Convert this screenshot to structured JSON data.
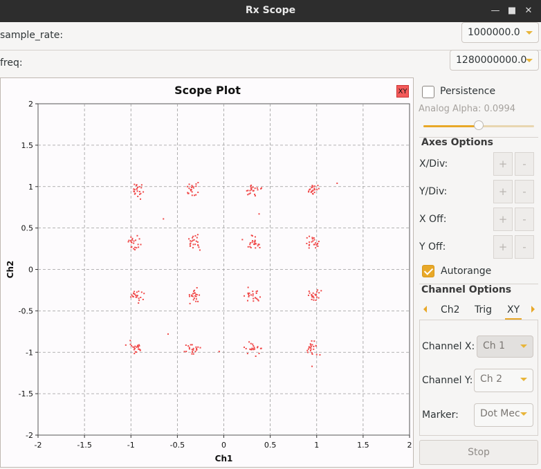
{
  "window": {
    "title": "Rx Scope"
  },
  "params": {
    "sample_rate": {
      "label": "sample_rate:",
      "value": "1000000.0"
    },
    "freq": {
      "label": "freq:",
      "value": "1280000000.0"
    }
  },
  "plot": {
    "xy_button": "XY",
    "marker_color": "#f04848"
  },
  "chart_data": {
    "type": "scatter",
    "title": "Scope Plot",
    "xlabel": "Ch1",
    "ylabel": "Ch2",
    "xlim": [
      -2,
      2
    ],
    "ylim": [
      -2,
      2
    ],
    "x_ticks": [
      "-2",
      "-1.5",
      "-1",
      "-0.5",
      "0",
      "0.5",
      "1",
      "1.5",
      "2"
    ],
    "y_ticks": [
      "-2",
      "-1.5",
      "-1",
      "-0.5",
      "0",
      "0.5",
      "1",
      "1.5",
      "2"
    ],
    "grid": true,
    "clusters": {
      "x": [
        -0.95,
        -0.32,
        0.32,
        0.95
      ],
      "y": [
        -0.95,
        -0.32,
        0.32,
        0.95
      ],
      "spread": 0.04,
      "points_per_cluster": 22
    },
    "outliers": [
      [
        1.22,
        1.04
      ],
      [
        -0.65,
        0.61
      ],
      [
        0.38,
        0.67
      ],
      [
        -0.6,
        -0.78
      ],
      [
        0.22,
        -0.32
      ],
      [
        -0.05,
        -0.99
      ],
      [
        0.95,
        -1.17
      ],
      [
        0.2,
        0.36
      ],
      [
        -0.28,
        0.42
      ]
    ]
  },
  "controls": {
    "persistence": {
      "label": "Persistence",
      "checked": false
    },
    "analog_alpha": {
      "label": "Analog Alpha: 0.0994",
      "value": 0.0994,
      "slider_fraction": 0.5
    },
    "axes_options": {
      "title": "Axes Options",
      "rows": [
        {
          "label": "X/Div:",
          "plus": "+",
          "minus": "-"
        },
        {
          "label": "Y/Div:",
          "plus": "+",
          "minus": "-"
        },
        {
          "label": "X Off:",
          "plus": "+",
          "minus": "-"
        },
        {
          "label": "Y Off:",
          "plus": "+",
          "minus": "-"
        }
      ]
    },
    "autorange": {
      "label": "Autorange",
      "checked": true
    },
    "channel_options": {
      "title": "Channel Options",
      "tabs": [
        "Ch2",
        "Trig",
        "XY"
      ],
      "active_tab": "XY",
      "channel_x": {
        "label": "Channel X:",
        "value": "Ch 1"
      },
      "channel_y": {
        "label": "Channel Y:",
        "value": "Ch 2"
      },
      "marker": {
        "label": "Marker:",
        "value": "Dot Mec"
      }
    },
    "stop_button": "Stop"
  },
  "colors": {
    "accent": "#e8a828",
    "titlebar": "#2d2d2d",
    "scatter": "#f04848"
  }
}
